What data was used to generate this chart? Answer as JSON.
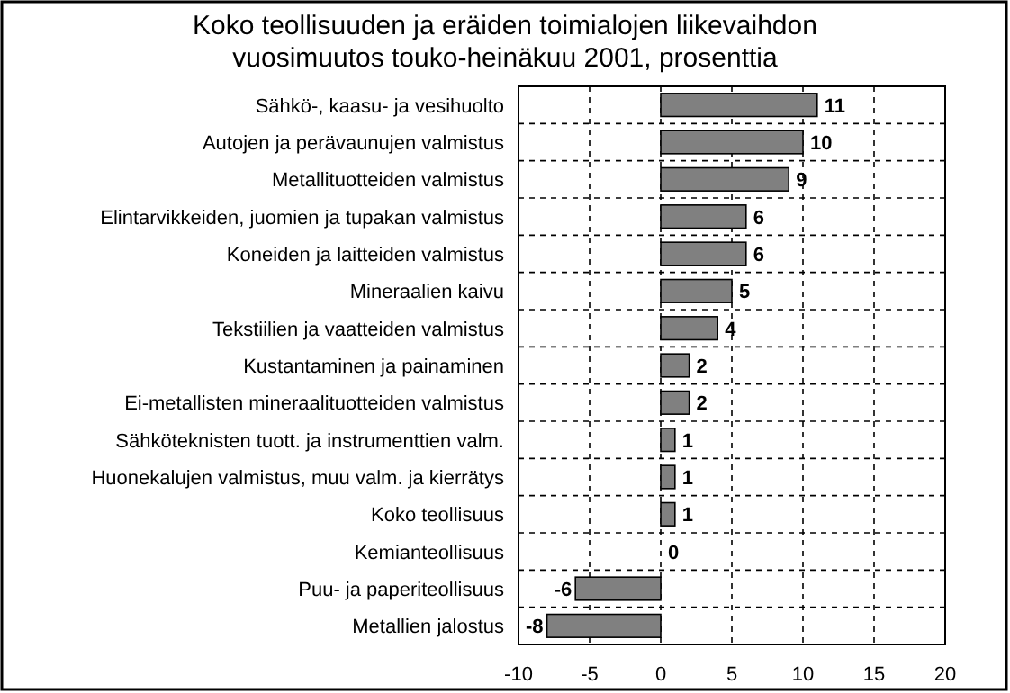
{
  "chart_data": {
    "type": "bar",
    "orientation": "horizontal",
    "title": "Koko teollisuuden ja eräiden toimialojen liikevaihdon\nvuosimuutos touko-heinäkuu 2001, prosenttia",
    "categories": [
      "Sähkö-, kaasu- ja vesihuolto",
      "Autojen ja perävaunujen valmistus",
      "Metallituotteiden valmistus",
      "Elintarvikkeiden, juomien ja tupakan valmistus",
      "Koneiden ja laitteiden valmistus",
      "Mineraalien kaivu",
      "Tekstiilien ja vaatteiden valmistus",
      "Kustantaminen ja painaminen",
      "Ei-metallisten mineraalituotteiden valmistus",
      "Sähköteknisten tuott. ja instrumenttien valm.",
      "Huonekalujen valmistus, muu valm. ja kierrätys",
      "Koko teollisuus",
      "Kemianteollisuus",
      "Puu- ja paperiteollisuus",
      "Metallien jalostus"
    ],
    "values": [
      11,
      10,
      9,
      6,
      6,
      5,
      4,
      2,
      2,
      1,
      1,
      1,
      0,
      -6,
      -8
    ],
    "color": "#808080",
    "xlim": [
      -10,
      20
    ],
    "xticks": [
      -10,
      -5,
      0,
      5,
      10,
      15,
      20
    ],
    "grid": true,
    "data_labels": true
  }
}
